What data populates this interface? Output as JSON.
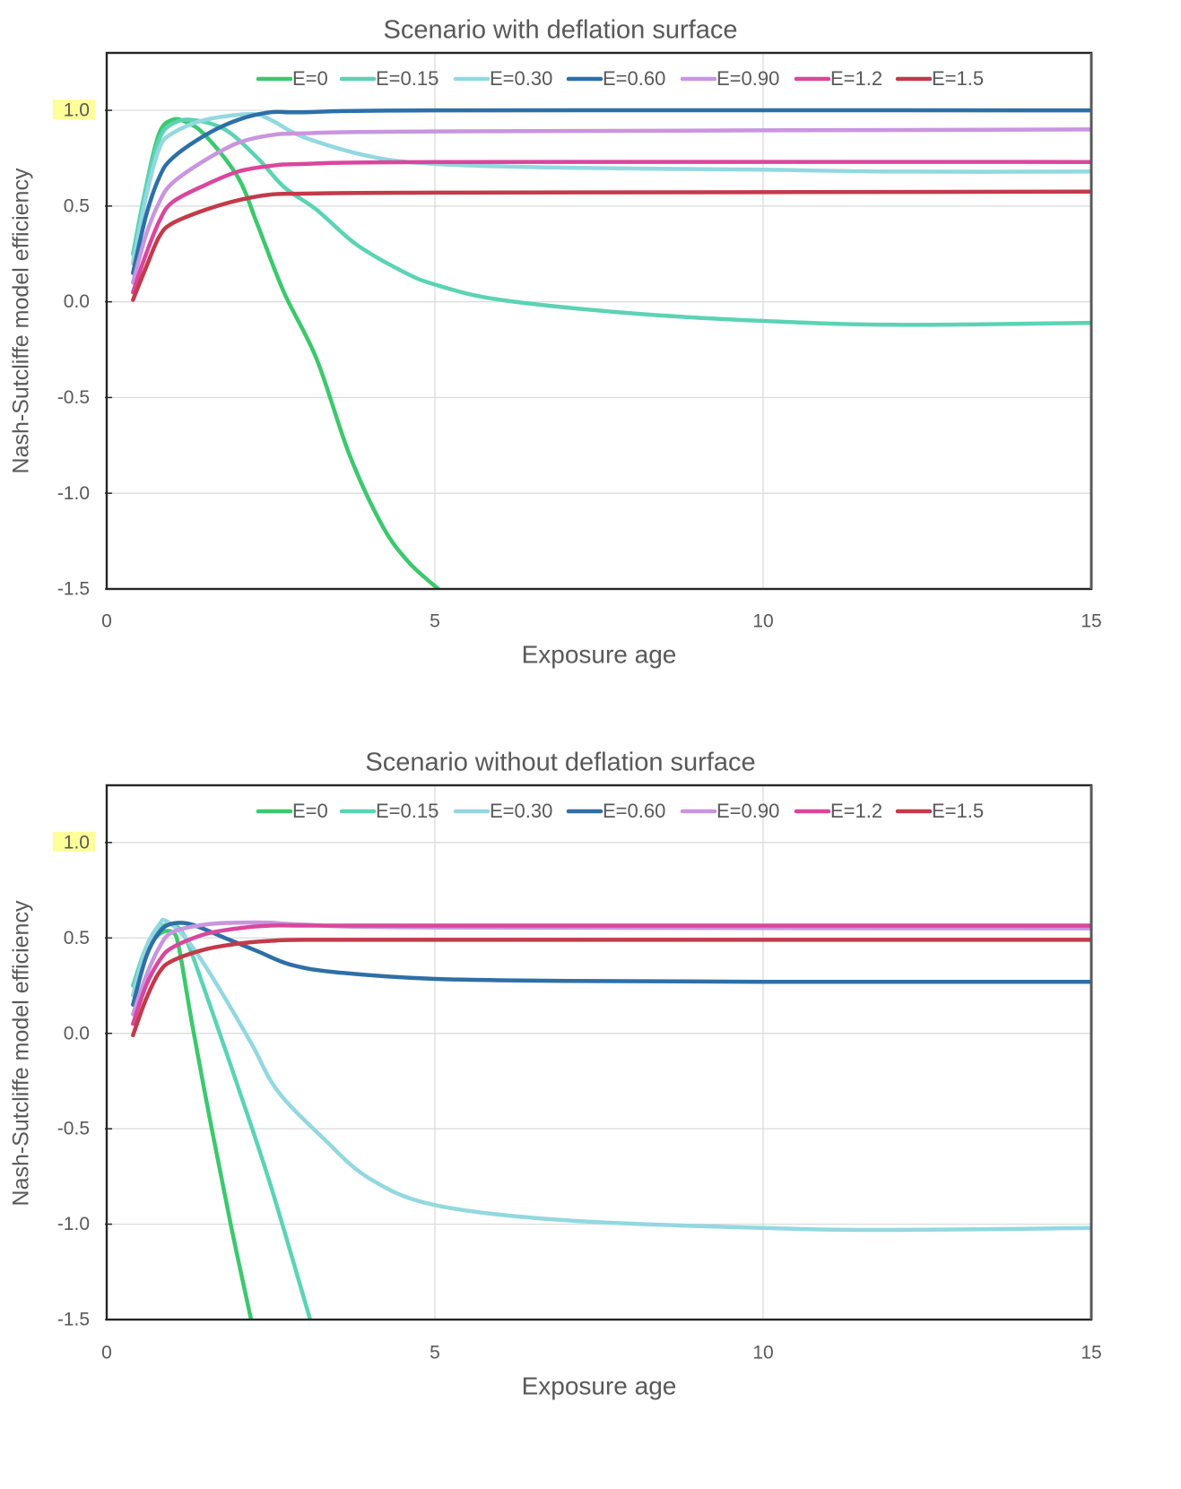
{
  "chart_data": [
    {
      "type": "line",
      "title": "Scenario with deflation surface",
      "xlabel": "Exposure age",
      "ylabel": "Nash-Sutcliffe model efficiency",
      "xlim": [
        0,
        15
      ],
      "ylim": [
        -1.5,
        1.3
      ],
      "x_ticks": [
        "0",
        "5",
        "10",
        "15"
      ],
      "y_ticks": [
        "1.0",
        "0.5",
        "0.0",
        "-0.5",
        "-1.0",
        "-1.5"
      ],
      "highlighted_tick": "1.0",
      "grid": true,
      "legend_position": "top-center",
      "series": [
        {
          "name": "E=0",
          "color": "#3cc86e",
          "points": [
            [
              0.4,
              0.2
            ],
            [
              0.6,
              0.6
            ],
            [
              0.8,
              0.88
            ],
            [
              1.0,
              0.95
            ],
            [
              1.2,
              0.94
            ],
            [
              1.5,
              0.87
            ],
            [
              2.0,
              0.65
            ],
            [
              2.3,
              0.4
            ],
            [
              2.7,
              0.05
            ],
            [
              3.2,
              -0.3
            ],
            [
              3.7,
              -0.8
            ],
            [
              4.2,
              -1.17
            ],
            [
              4.6,
              -1.36
            ],
            [
              5.05,
              -1.5
            ]
          ]
        },
        {
          "name": "E=0.15",
          "color": "#5bd3b4",
          "points": [
            [
              0.4,
              0.25
            ],
            [
              0.6,
              0.6
            ],
            [
              0.8,
              0.85
            ],
            [
              1.0,
              0.93
            ],
            [
              1.3,
              0.95
            ],
            [
              1.8,
              0.9
            ],
            [
              2.3,
              0.75
            ],
            [
              2.7,
              0.6
            ],
            [
              3.2,
              0.48
            ],
            [
              3.8,
              0.3
            ],
            [
              4.5,
              0.16
            ],
            [
              5,
              0.09
            ],
            [
              6,
              0.01
            ],
            [
              8,
              -0.06
            ],
            [
              10,
              -0.1
            ],
            [
              12,
              -0.12
            ],
            [
              15,
              -0.11
            ]
          ]
        },
        {
          "name": "E=0.30",
          "color": "#93d8e0",
          "points": [
            [
              0.4,
              0.2
            ],
            [
              0.6,
              0.55
            ],
            [
              0.8,
              0.8
            ],
            [
              1.0,
              0.88
            ],
            [
              1.5,
              0.95
            ],
            [
              2.2,
              0.98
            ],
            [
              2.5,
              0.95
            ],
            [
              3,
              0.86
            ],
            [
              4,
              0.76
            ],
            [
              5,
              0.72
            ],
            [
              7,
              0.7
            ],
            [
              10,
              0.69
            ],
            [
              12,
              0.68
            ],
            [
              15,
              0.68
            ]
          ]
        },
        {
          "name": "E=0.60",
          "color": "#2e6fa7",
          "points": [
            [
              0.4,
              0.15
            ],
            [
              0.6,
              0.45
            ],
            [
              0.8,
              0.65
            ],
            [
              1.0,
              0.75
            ],
            [
              1.5,
              0.87
            ],
            [
              2.0,
              0.95
            ],
            [
              2.5,
              0.99
            ],
            [
              3,
              0.99
            ],
            [
              5,
              1.0
            ],
            [
              15,
              1.0
            ]
          ]
        },
        {
          "name": "E=0.90",
          "color": "#c995df",
          "points": [
            [
              0.4,
              0.1
            ],
            [
              0.6,
              0.35
            ],
            [
              0.8,
              0.52
            ],
            [
              1.0,
              0.62
            ],
            [
              1.5,
              0.74
            ],
            [
              2.0,
              0.83
            ],
            [
              2.5,
              0.87
            ],
            [
              3,
              0.88
            ],
            [
              5,
              0.89
            ],
            [
              15,
              0.9
            ]
          ]
        },
        {
          "name": "E=1.2",
          "color": "#d9479c",
          "points": [
            [
              0.4,
              0.05
            ],
            [
              0.6,
              0.25
            ],
            [
              0.8,
              0.42
            ],
            [
              1.0,
              0.52
            ],
            [
              1.5,
              0.61
            ],
            [
              2.0,
              0.68
            ],
            [
              2.5,
              0.71
            ],
            [
              3,
              0.72
            ],
            [
              5,
              0.73
            ],
            [
              15,
              0.73
            ]
          ]
        },
        {
          "name": "E=1.5",
          "color": "#c33a4a",
          "points": [
            [
              0.4,
              0.01
            ],
            [
              0.6,
              0.18
            ],
            [
              0.8,
              0.34
            ],
            [
              1.0,
              0.41
            ],
            [
              1.5,
              0.48
            ],
            [
              2.0,
              0.53
            ],
            [
              2.5,
              0.56
            ],
            [
              3,
              0.565
            ],
            [
              5,
              0.57
            ],
            [
              15,
              0.575
            ]
          ]
        }
      ]
    },
    {
      "type": "line",
      "title": "Scenario without deflation surface",
      "xlabel": "Exposure age",
      "ylabel": "Nash-Sutcliffe model efficiency",
      "xlim": [
        0,
        15
      ],
      "ylim": [
        -1.5,
        1.3
      ],
      "x_ticks": [
        "0",
        "5",
        "10",
        "15"
      ],
      "y_ticks": [
        "1.0",
        "0.5",
        "0.0",
        "-0.5",
        "-1.0",
        "-1.5"
      ],
      "highlighted_tick": "1.0",
      "grid": true,
      "legend_position": "top-center",
      "series": [
        {
          "name": "E=0",
          "color": "#3cc86e",
          "points": [
            [
              0.4,
              0.2
            ],
            [
              0.6,
              0.42
            ],
            [
              0.8,
              0.52
            ],
            [
              1.0,
              0.53
            ],
            [
              1.1,
              0.45
            ],
            [
              1.3,
              0.05
            ],
            [
              1.6,
              -0.5
            ],
            [
              1.9,
              -1.02
            ],
            [
              2.2,
              -1.5
            ]
          ]
        },
        {
          "name": "E=0.15",
          "color": "#5bd3b4",
          "points": [
            [
              0.4,
              0.25
            ],
            [
              0.6,
              0.45
            ],
            [
              0.8,
              0.55
            ],
            [
              1.0,
              0.57
            ],
            [
              1.2,
              0.5
            ],
            [
              1.5,
              0.22
            ],
            [
              2.0,
              -0.28
            ],
            [
              2.5,
              -0.8
            ],
            [
              3.1,
              -1.5
            ]
          ]
        },
        {
          "name": "E=0.30",
          "color": "#93d8e0",
          "points": [
            [
              0.4,
              0.2
            ],
            [
              0.6,
              0.45
            ],
            [
              0.8,
              0.57
            ],
            [
              0.9,
              0.59
            ],
            [
              1.2,
              0.5
            ],
            [
              1.6,
              0.3
            ],
            [
              2.2,
              -0.05
            ],
            [
              2.6,
              -0.3
            ],
            [
              3.3,
              -0.55
            ],
            [
              4,
              -0.76
            ],
            [
              5,
              -0.9
            ],
            [
              7,
              -0.98
            ],
            [
              10,
              -1.02
            ],
            [
              12,
              -1.03
            ],
            [
              15,
              -1.02
            ]
          ]
        },
        {
          "name": "E=0.60",
          "color": "#2e6fa7",
          "points": [
            [
              0.4,
              0.15
            ],
            [
              0.6,
              0.4
            ],
            [
              0.8,
              0.53
            ],
            [
              1.0,
              0.575
            ],
            [
              1.3,
              0.57
            ],
            [
              1.8,
              0.5
            ],
            [
              2.3,
              0.43
            ],
            [
              2.8,
              0.36
            ],
            [
              3.5,
              0.32
            ],
            [
              5,
              0.285
            ],
            [
              7,
              0.275
            ],
            [
              10,
              0.27
            ],
            [
              15,
              0.27
            ]
          ]
        },
        {
          "name": "E=0.90",
          "color": "#c995df",
          "points": [
            [
              0.4,
              0.1
            ],
            [
              0.6,
              0.3
            ],
            [
              0.8,
              0.45
            ],
            [
              1.0,
              0.53
            ],
            [
              1.5,
              0.57
            ],
            [
              2.0,
              0.58
            ],
            [
              2.5,
              0.58
            ],
            [
              3,
              0.57
            ],
            [
              5,
              0.555
            ],
            [
              15,
              0.55
            ]
          ]
        },
        {
          "name": "E=1.2",
          "color": "#d9479c",
          "points": [
            [
              0.4,
              0.05
            ],
            [
              0.6,
              0.25
            ],
            [
              0.8,
              0.38
            ],
            [
              1.0,
              0.45
            ],
            [
              1.5,
              0.52
            ],
            [
              2.0,
              0.55
            ],
            [
              2.5,
              0.565
            ],
            [
              3,
              0.565
            ],
            [
              5,
              0.565
            ],
            [
              15,
              0.565
            ]
          ]
        },
        {
          "name": "E=1.5",
          "color": "#c33a4a",
          "points": [
            [
              0.4,
              -0.01
            ],
            [
              0.6,
              0.18
            ],
            [
              0.8,
              0.32
            ],
            [
              1.0,
              0.38
            ],
            [
              1.5,
              0.44
            ],
            [
              2.0,
              0.47
            ],
            [
              2.5,
              0.485
            ],
            [
              3,
              0.49
            ],
            [
              5,
              0.49
            ],
            [
              15,
              0.49
            ]
          ]
        }
      ]
    }
  ]
}
